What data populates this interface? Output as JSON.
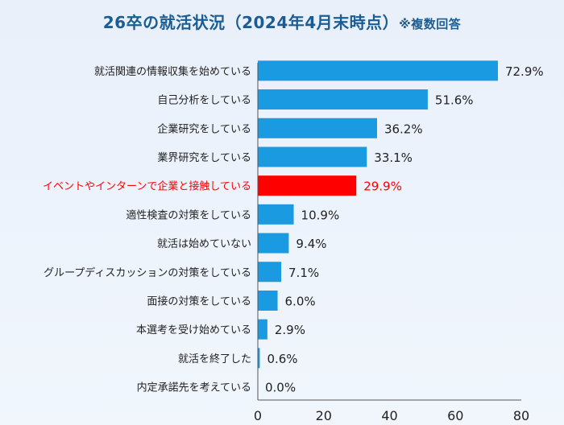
{
  "title": "26卒の就活状況（2024年4月末時点）",
  "note": "※複数回答",
  "colors": {
    "bar": "#1a9ae0",
    "highlight": "#ff0000",
    "title": "#1b5d93",
    "text": "#222222"
  },
  "chart_data": {
    "type": "bar",
    "orientation": "horizontal",
    "title": "26卒の就活状況（2024年4月末時点）",
    "subtitle": "※複数回答",
    "categories": [
      "就活関連の情報収集を始めている",
      "自己分析をしている",
      "企業研究をしている",
      "業界研究をしている",
      "イベントやインターンで企業と接触している",
      "適性検査の対策をしている",
      "就活は始めていない",
      "グループディスカッションの対策をしている",
      "面接の対策をしている",
      "本選考を受け始めている",
      "就活を終了した",
      "内定承諾先を考えている"
    ],
    "values": [
      72.9,
      51.6,
      36.2,
      33.1,
      29.9,
      10.9,
      9.4,
      7.1,
      6.0,
      2.9,
      0.6,
      0.0
    ],
    "value_labels": [
      "72.9%",
      "51.6%",
      "36.2%",
      "33.1%",
      "29.9%",
      "10.9%",
      "9.4%",
      "7.1%",
      "6.0%",
      "2.9%",
      "0.6%",
      "0.0%"
    ],
    "highlight_index": 4,
    "xlim": [
      0,
      80
    ],
    "xticks": [
      "0",
      "20",
      "40",
      "60",
      "80"
    ],
    "grid": false,
    "xlabel": "",
    "ylabel": ""
  }
}
